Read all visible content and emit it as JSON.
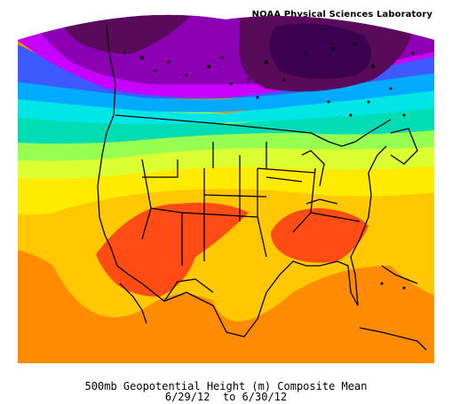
{
  "header": {
    "credit": "NOAA Physical Sciences Laboratory"
  },
  "caption": {
    "line1": "500mb Geopotential Height (m) Composite Mean",
    "line2": "6/29/12  to 6/30/12"
  },
  "map": {
    "variable": "500mb Geopotential Height",
    "units": "m",
    "colors": {
      "deep_purple": "#5a0a5a",
      "purple": "#8c00b4",
      "violet": "#c800ff",
      "blue": "#3c5aff",
      "light_blue": "#00aaff",
      "cyan": "#00e6e6",
      "teal": "#00dcb4",
      "green": "#96ff50",
      "yellow_green": "#dcff32",
      "yellow": "#ffeb00",
      "gold": "#ffc800",
      "orange": "#ff8c00",
      "red_orange": "#ff4b14"
    }
  }
}
